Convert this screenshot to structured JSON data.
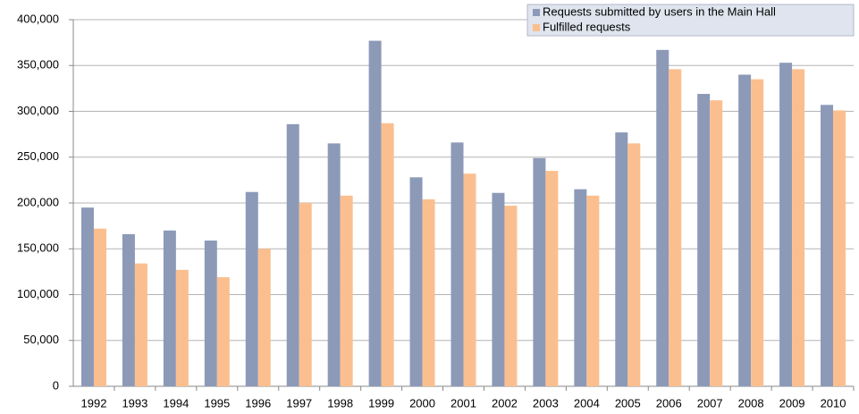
{
  "chart_data": {
    "type": "bar",
    "categories": [
      "1992",
      "1993",
      "1994",
      "1995",
      "1996",
      "1997",
      "1998",
      "1999",
      "2000",
      "2001",
      "2002",
      "2003",
      "2004",
      "2005",
      "2006",
      "2007",
      "2008",
      "2009",
      "2010"
    ],
    "series": [
      {
        "name": "Requests submitted by users in the Main Hall",
        "color": "#8c9ab8",
        "values": [
          195000,
          166000,
          170000,
          159000,
          212000,
          286000,
          265000,
          377000,
          228000,
          266000,
          211000,
          249000,
          215000,
          277000,
          367000,
          319000,
          340000,
          353000,
          307000
        ]
      },
      {
        "name": "Fulfilled requests",
        "color": "#fbbf8f",
        "values": [
          172000,
          134000,
          127000,
          119000,
          150000,
          200000,
          208000,
          287000,
          204000,
          232000,
          197000,
          235000,
          208000,
          265000,
          346000,
          312000,
          335000,
          346000,
          301000
        ]
      }
    ],
    "ylim": [
      0,
      400000
    ],
    "yticks": [
      0,
      {
        "value": 50000,
        "label": "50,000"
      },
      {
        "value": 100000,
        "label": "100,000"
      },
      {
        "value": 150000,
        "label": "150,000"
      },
      {
        "value": 200000,
        "label": "200,000"
      },
      {
        "value": 250000,
        "label": "250,000"
      },
      {
        "value": 300000,
        "label": "300,000"
      },
      {
        "value": 350000,
        "label": "350,000"
      },
      {
        "value": 400000,
        "label": "400,000"
      }
    ],
    "grid": true,
    "legend": "top-right"
  }
}
